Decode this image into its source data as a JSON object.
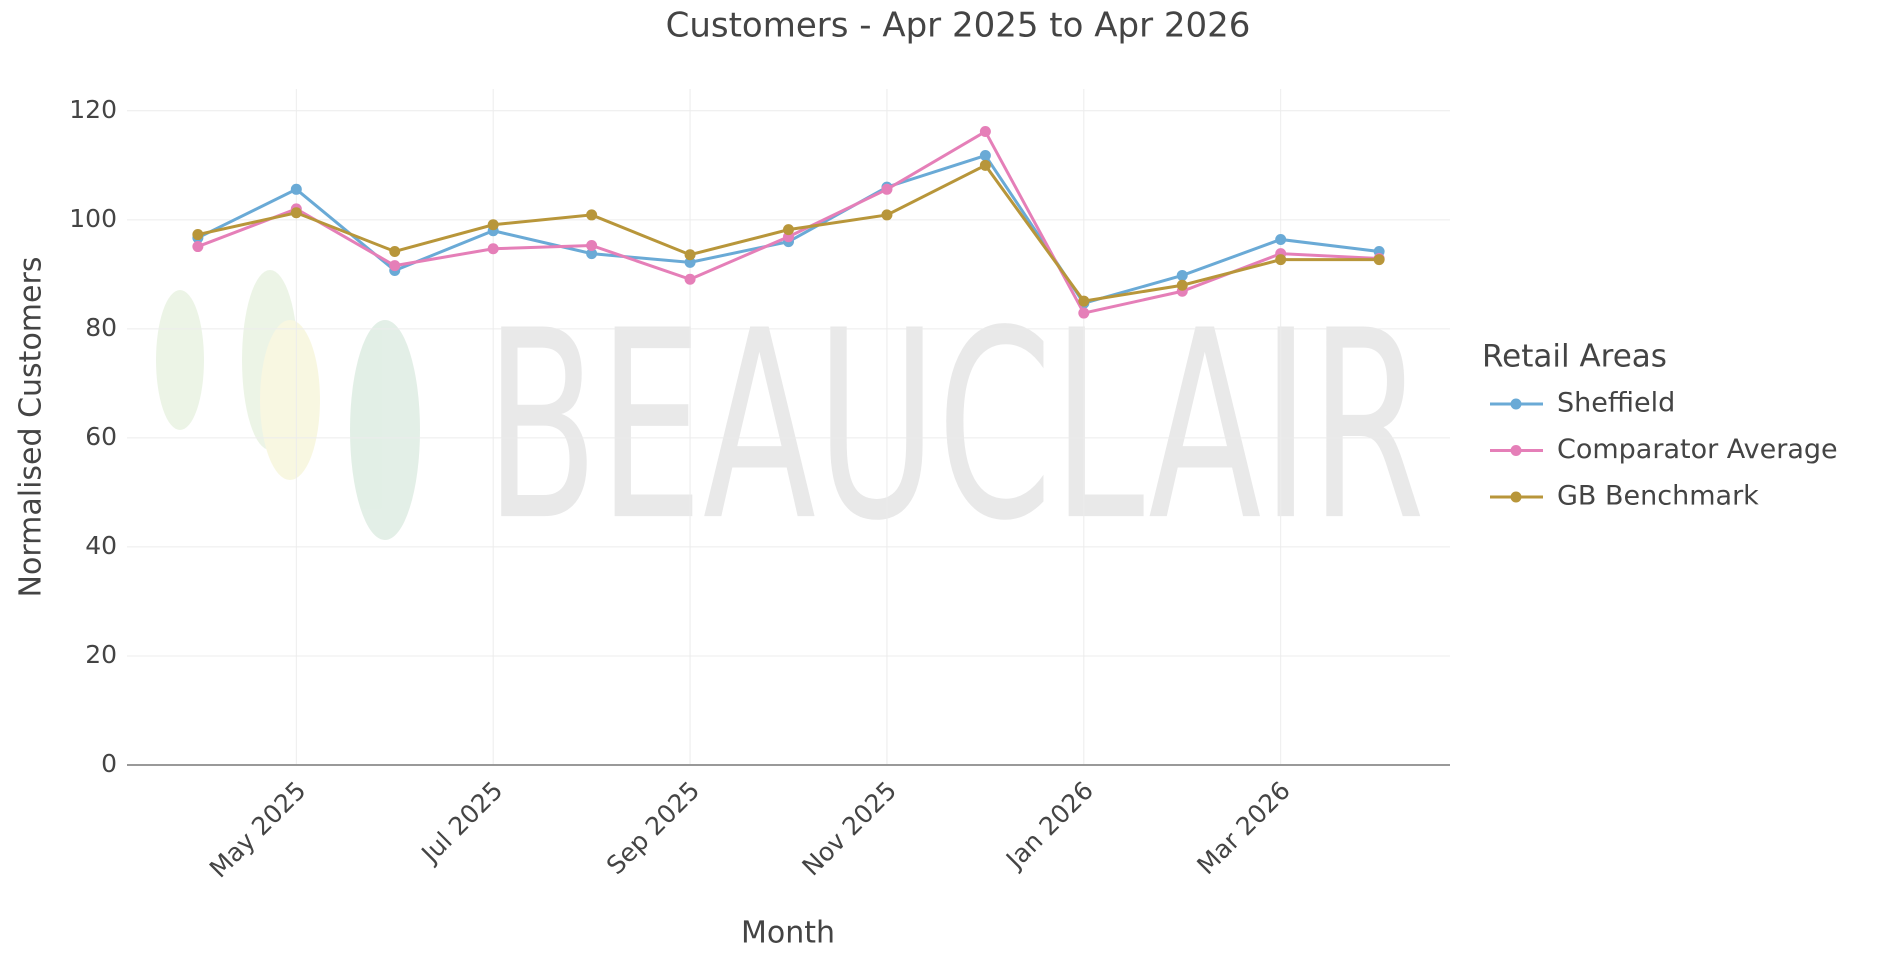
{
  "chart_data": {
    "type": "line",
    "title": "Customers - Apr 2025 to Apr 2026",
    "x_label": "Month",
    "y_label": "Normalised Customers",
    "watermark": "BEAUCLAIR",
    "x": [
      "2025-04",
      "2025-05",
      "2025-06",
      "2025-07",
      "2025-08",
      "2025-09",
      "2025-10",
      "2025-11",
      "2025-12",
      "2026-01",
      "2026-02",
      "2026-03",
      "2026-04"
    ],
    "xticks": [
      {
        "value": "2025-05",
        "label": "May 2025"
      },
      {
        "value": "2025-07",
        "label": "Jul 2025"
      },
      {
        "value": "2025-09",
        "label": "Sep 2025"
      },
      {
        "value": "2025-11",
        "label": "Nov 2025"
      },
      {
        "value": "2026-01",
        "label": "Jan 2026"
      },
      {
        "value": "2026-03",
        "label": "Mar 2026"
      }
    ],
    "ylim": [
      0,
      124
    ],
    "yticks": [
      0,
      20,
      40,
      60,
      80,
      100,
      120
    ],
    "grid": true,
    "legend_title": "Retail Areas",
    "legend": "right",
    "series": [
      {
        "name": "Sheffield",
        "color": "#6aaad6",
        "values": [
          96.7,
          105.6,
          90.7,
          98,
          93.8,
          92.2,
          96,
          106,
          111.8,
          84.7,
          89.8,
          96.4,
          94.2
        ]
      },
      {
        "name": "Comparator Average",
        "color": "#e57fb8",
        "values": [
          95.1,
          102,
          91.6,
          94.7,
          95.3,
          89.1,
          96.9,
          105.6,
          116.2,
          82.9,
          86.9,
          93.8,
          92.9
        ]
      },
      {
        "name": "GB Benchmark",
        "color": "#b8963a",
        "values": [
          97.3,
          101.3,
          94.2,
          99.1,
          100.9,
          93.6,
          98.2,
          100.9,
          110,
          85.1,
          88,
          92.7,
          92.7
        ]
      }
    ]
  }
}
